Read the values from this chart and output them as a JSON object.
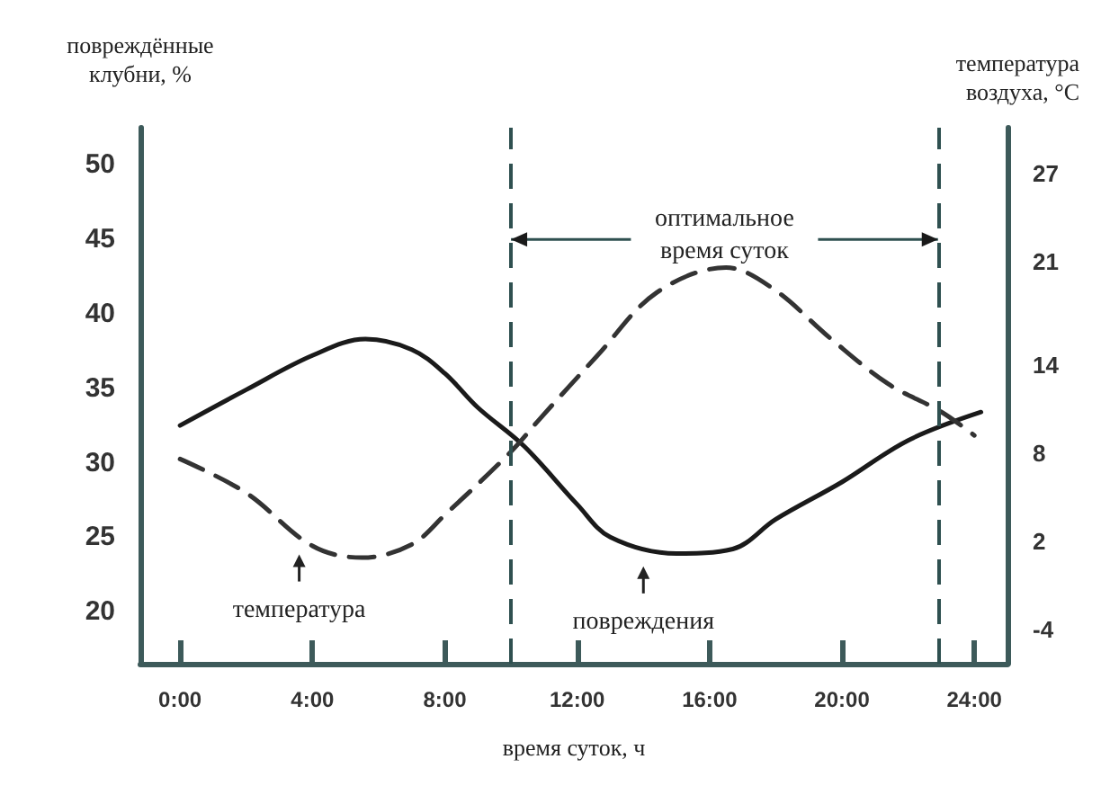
{
  "chart_data": {
    "type": "line",
    "xlabel": "время суток, ч",
    "ylabel": "повреждённые клубни, %",
    "y2label": "температура воздуха, °C",
    "xlim": [
      -1.2,
      25
    ],
    "xticks": [
      {
        "value": 0,
        "label": "0:00"
      },
      {
        "value": 4,
        "label": "4:00"
      },
      {
        "value": 8,
        "label": "8:00"
      },
      {
        "value": 12,
        "label": "12:00"
      },
      {
        "value": 16,
        "label": "16:00"
      },
      {
        "value": 20,
        "label": "20:00"
      },
      {
        "value": 24,
        "label": "24:00"
      }
    ],
    "ylim": [
      16.5,
      52.5
    ],
    "yticks": [
      20,
      25,
      30,
      35,
      40,
      45,
      50
    ],
    "y2lim": [
      -6.3,
      30.1
    ],
    "y2ticks": [
      -4,
      2,
      8,
      14,
      21,
      27
    ],
    "series": [
      {
        "color": "#1a1a1a",
        "line_style": "solid",
        "x": [
          0,
          2,
          4,
          5.6,
          7,
          8,
          9,
          10.4,
          12,
          13,
          15,
          16.7,
          18,
          20,
          22,
          24.2
        ],
        "values": [
          32.5,
          34.9,
          37.2,
          38.3,
          37.6,
          36,
          33.7,
          31.1,
          27.2,
          25,
          23.9,
          24.2,
          26.2,
          28.7,
          31.5,
          33.4
        ]
      },
      {
        "color": "#333333",
        "line_style": "dashed",
        "axis": "y2",
        "x": [
          0,
          2,
          4,
          5.5,
          7,
          8,
          10,
          10.9,
          12.6,
          14.4,
          16.5,
          17.9,
          19.7,
          21.4,
          23,
          24
        ],
        "values": [
          7.6,
          5.3,
          1.7,
          0.9,
          1.8,
          3.8,
          8.1,
          10.4,
          14.6,
          18.9,
          20.6,
          19.2,
          15.7,
          12.7,
          10.8,
          9.2
        ]
      }
    ],
    "ref_lines": [
      {
        "axis": "x",
        "value": 10,
        "color": "#2f5050",
        "line_style": "dashed"
      },
      {
        "axis": "x",
        "value": 22.9,
        "color": "#2f5050",
        "line_style": "dashed"
      }
    ],
    "annotations": [
      {
        "text": "оптимальное время суток",
        "x": 10,
        "y": 45
      },
      {
        "text": "температура",
        "x": 3.6,
        "y": 24.8
      },
      {
        "text": "повреждения",
        "x": 14,
        "y": 24
      }
    ],
    "marker": "none",
    "grid": false
  }
}
